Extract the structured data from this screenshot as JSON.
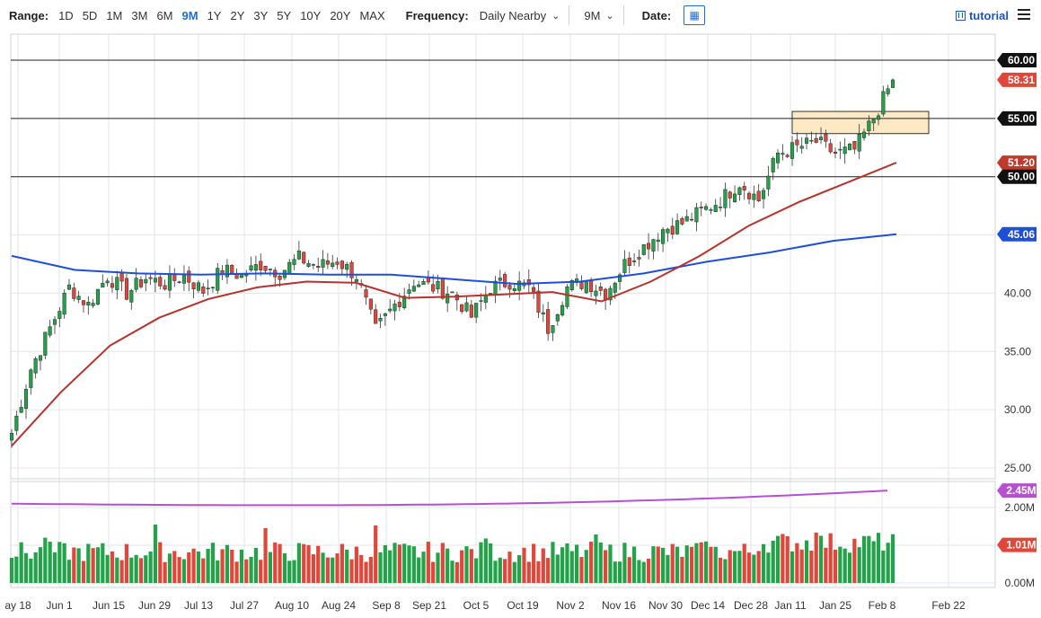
{
  "toolbar": {
    "range_label": "Range:",
    "ranges": [
      "1D",
      "5D",
      "1M",
      "3M",
      "6M",
      "9M",
      "1Y",
      "2Y",
      "3Y",
      "5Y",
      "10Y",
      "20Y",
      "MAX"
    ],
    "active_range": "9M",
    "frequency_label": "Frequency:",
    "frequency_value": "Daily Nearby",
    "period_value": "9M",
    "date_label": "Date:",
    "calendar_icon": "calendar-icon",
    "tutorial_label": "tutorial",
    "tutorial_icon": "film-icon",
    "menu_icon": "hamburger-menu-icon"
  },
  "chart_data": {
    "type": "candlestick",
    "price_ylim": [
      24,
      61
    ],
    "price_ticks": [
      "60.00",
      "55.00",
      "50.00",
      "45.00",
      "40.00",
      "35.00",
      "30.00",
      "25.00"
    ],
    "volume_ticks": [
      "2.00M",
      "1.00M",
      "0.00M"
    ],
    "x_labels": [
      "ay 18",
      "Jun 1",
      "Jun 15",
      "Jun 29",
      "Jul 13",
      "Jul 27",
      "Aug 10",
      "Aug 24",
      "Sep 8",
      "Sep 21",
      "Oct 5",
      "Oct 19",
      "Nov 2",
      "Nov 16",
      "Nov 30",
      "Dec 14",
      "Dec 28",
      "Jan 11",
      "Jan 25",
      "Feb 8",
      "Feb 22"
    ],
    "horizontal_lines": [
      60.0,
      55.0,
      50.0
    ],
    "zone": {
      "from_date": "Jan 11",
      "to_date": "Feb 15",
      "low": 53.7,
      "high": 55.6,
      "color": "#fde9c3"
    },
    "badges": [
      {
        "label": "60.00",
        "value": 60.0,
        "color": "#111111"
      },
      {
        "label": "58.31",
        "value": 58.31,
        "color": "#e0473a"
      },
      {
        "label": "55.00",
        "value": 55.0,
        "color": "#111111"
      },
      {
        "label": "51.20",
        "value": 51.2,
        "color": "#c0392b"
      },
      {
        "label": "50.00",
        "value": 50.0,
        "color": "#111111"
      },
      {
        "label": "45.06",
        "value": 45.06,
        "color": "#1f4fd8"
      }
    ],
    "volume_badges": [
      {
        "label": "2.45M",
        "value": 2.45,
        "color": "#b84fd0"
      },
      {
        "label": "1.01M",
        "value": 1.01,
        "color": "#e0473a"
      }
    ],
    "colors": {
      "up": "#22a34a",
      "down": "#e0473a",
      "ma_short": "#b5332c",
      "ma_long": "#1f4fd8",
      "vol_avg": "#b84fd0"
    },
    "price_path": [
      28.0,
      33.5,
      37.0,
      40.5,
      39.0,
      41.5,
      40.0,
      41.3,
      40.8,
      41.5,
      40.2,
      42.0,
      41.5,
      42.5,
      41.8,
      43.0,
      42.3,
      42.8,
      41.5,
      36.8,
      39.0,
      41.0,
      40.5,
      40.0,
      38.0,
      40.5,
      41.0,
      40.5,
      37.0,
      40.5,
      41.0,
      40.0,
      42.5,
      44.0,
      45.5,
      46.0,
      47.0,
      48.0,
      49.5,
      48.0,
      52.0,
      52.5,
      53.0,
      52.0,
      52.3,
      55.0,
      58.3
    ],
    "ma_short": [
      26.9,
      31.5,
      35.5,
      37.9,
      39.5,
      40.5,
      41.0,
      40.9,
      39.6,
      39.7,
      39.9,
      40.1,
      39.3,
      41.0,
      43.2,
      45.8,
      47.8,
      49.5,
      51.2
    ],
    "ma_long": [
      43.2,
      42.0,
      41.7,
      41.6,
      41.7,
      41.6,
      41.6,
      41.2,
      40.8,
      41.0,
      41.7,
      42.7,
      43.5,
      44.5,
      45.06
    ],
    "volume_avg_start": 2.1,
    "volume_avg_end": 2.45
  }
}
